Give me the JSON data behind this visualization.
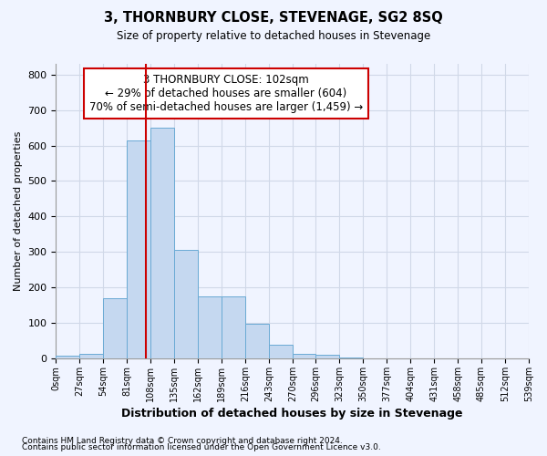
{
  "title": "3, THORNBURY CLOSE, STEVENAGE, SG2 8SQ",
  "subtitle": "Size of property relative to detached houses in Stevenage",
  "xlabel": "Distribution of detached houses by size in Stevenage",
  "ylabel": "Number of detached properties",
  "footnote1": "Contains HM Land Registry data © Crown copyright and database right 2024.",
  "footnote2": "Contains public sector information licensed under the Open Government Licence v3.0.",
  "annotation_line1": "3 THORNBURY CLOSE: 102sqm",
  "annotation_line2": "← 29% of detached houses are smaller (604)",
  "annotation_line3": "70% of semi-detached houses are larger (1,459) →",
  "bar_edges": [
    0,
    27,
    54,
    81,
    108,
    135,
    162,
    189,
    216,
    243,
    270,
    296,
    323,
    350,
    377,
    404,
    431,
    458,
    485,
    512,
    539
  ],
  "bar_heights": [
    8,
    12,
    170,
    615,
    650,
    305,
    175,
    175,
    97,
    38,
    13,
    10,
    3,
    0,
    0,
    0,
    0,
    0,
    0,
    0
  ],
  "bar_color": "#c5d8f0",
  "bar_edge_color": "#6aaad4",
  "redline_x": 102,
  "redline_color": "#cc0000",
  "annotation_box_facecolor": "#ffffff",
  "annotation_box_edgecolor": "#cc0000",
  "grid_color": "#d0d8e8",
  "bg_color": "#f0f4ff",
  "ylim": [
    0,
    830
  ],
  "yticks": [
    0,
    100,
    200,
    300,
    400,
    500,
    600,
    700,
    800
  ]
}
